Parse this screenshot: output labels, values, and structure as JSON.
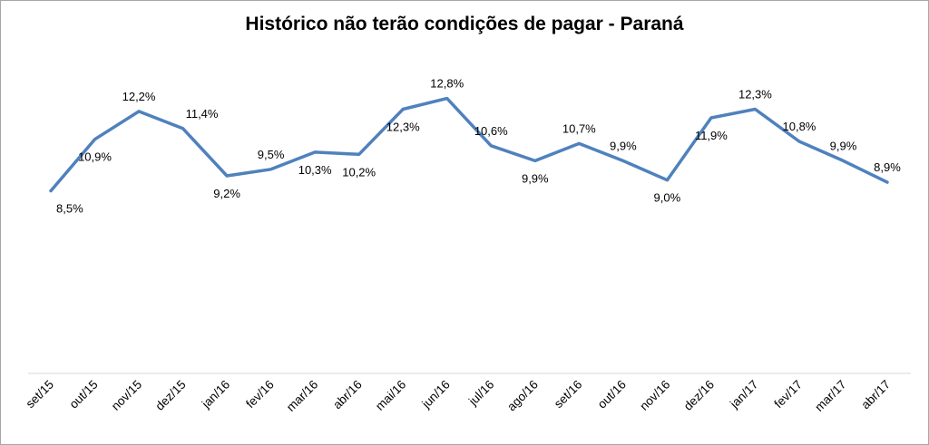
{
  "chart_data": {
    "type": "line",
    "title": "Histórico não terão condições de pagar - Paraná",
    "categories": [
      "set/15",
      "out/15",
      "nov/15",
      "dez/15",
      "jan/16",
      "fev/16",
      "mar/16",
      "abr/16",
      "mai/16",
      "jun/16",
      "jul/16",
      "ago/16",
      "set/16",
      "out/16",
      "nov/16",
      "dez/16",
      "jan/17",
      "fev/17",
      "mar/17",
      "abr/17"
    ],
    "series": [
      {
        "values": [
          8.5,
          10.9,
          12.2,
          11.4,
          9.2,
          9.5,
          10.3,
          10.2,
          12.3,
          12.8,
          10.6,
          9.9,
          10.7,
          9.9,
          9.0,
          11.9,
          12.3,
          10.8,
          9.9,
          8.9
        ],
        "labels": [
          "8,5%",
          "10,9%",
          "12,2%",
          "11,4%",
          "9,2%",
          "9,5%",
          "10,3%",
          "10,2%",
          "12,3%",
          "12,8%",
          "10,6%",
          "9,9%",
          "10,7%",
          "9,9%",
          "9,0%",
          "11,9%",
          "12,3%",
          "10,8%",
          "9,9%",
          "8,9%"
        ]
      }
    ],
    "line_color": "#4f81bd",
    "ylim": [
      0,
      15
    ],
    "grid": false,
    "legend": "none",
    "xlabel": "",
    "ylabel": ""
  }
}
